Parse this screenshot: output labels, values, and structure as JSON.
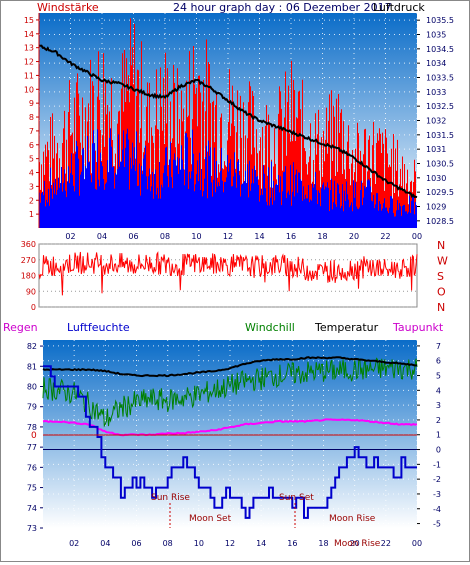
{
  "header": {
    "left_label": "Windstärke",
    "title": "24 hour graph day : 06 Dezember 2017",
    "right_label": "Luftdruck"
  },
  "legend": {
    "regen": "Regen",
    "luftfeuchte": "Luftfeuchte",
    "windchill": "Windchill",
    "temperatur": "Temperatur",
    "taupunkt": "Taupunkt"
  },
  "direction_labels": [
    "N",
    "W",
    "S",
    "O",
    "N"
  ],
  "colors": {
    "panel_top": "#0a6cc8",
    "panel_bottom": "#ffffff",
    "wind_red": "#ff0000",
    "wind_blue": "#0000ff",
    "pressure": "#000000",
    "windchill": "#008000",
    "temperature": "#000000",
    "dewpoint": "#ff00ff",
    "humidity": "#0000cc",
    "axis_red": "#cc0000",
    "axis_blue": "#000066",
    "label_dark_red": "#990000"
  },
  "chart_data": [
    {
      "type": "line",
      "title": "24 hour graph day : 06 Dezember 2017",
      "x_ticks": [
        "02",
        "04",
        "06",
        "08",
        "10",
        "12",
        "14",
        "16",
        "18",
        "20",
        "22",
        "00"
      ],
      "y_left_label": "Windstärke",
      "y_left_ticks": [
        1,
        2,
        3,
        4,
        5,
        6,
        7,
        8,
        9,
        10,
        11,
        12,
        13,
        14,
        15
      ],
      "y_left_range": [
        0,
        15.5
      ],
      "y_right_label": "Luftdruck",
      "y_right_ticks": [
        1028.5,
        1029,
        1029.5,
        1030,
        1030.5,
        1031,
        1031.5,
        1032,
        1032.5,
        1033,
        1033.5,
        1034,
        1034.5,
        1035,
        1035.5
      ],
      "y_right_range": [
        1028.25,
        1035.75
      ],
      "series": [
        {
          "name": "Luftdruck",
          "points": [
            [
              0,
              1034.6
            ],
            [
              1,
              1034.4
            ],
            [
              2,
              1034.0
            ],
            [
              3,
              1033.7
            ],
            [
              4,
              1033.4
            ],
            [
              5,
              1033.3
            ],
            [
              6,
              1033.1
            ],
            [
              7,
              1032.9
            ],
            [
              8,
              1032.8
            ],
            [
              9,
              1033.2
            ],
            [
              10,
              1033.4
            ],
            [
              11,
              1033.1
            ],
            [
              12,
              1032.7
            ],
            [
              13,
              1032.3
            ],
            [
              14,
              1032.0
            ],
            [
              15,
              1031.8
            ],
            [
              16,
              1031.6
            ],
            [
              17,
              1031.4
            ],
            [
              18,
              1031.2
            ],
            [
              19,
              1031.0
            ],
            [
              20,
              1030.7
            ],
            [
              21,
              1030.3
            ],
            [
              22,
              1029.9
            ],
            [
              23,
              1029.6
            ],
            [
              24,
              1029.3
            ]
          ]
        },
        {
          "name": "Windstärke",
          "points": [
            [
              0,
              3
            ],
            [
              1,
              4
            ],
            [
              2,
              5
            ],
            [
              3,
              6
            ],
            [
              4,
              7
            ],
            [
              5,
              6
            ],
            [
              6,
              6
            ],
            [
              7,
              5
            ],
            [
              8,
              5
            ],
            [
              9,
              6
            ],
            [
              10,
              6
            ],
            [
              11,
              5
            ],
            [
              12,
              5
            ],
            [
              13,
              5
            ],
            [
              14,
              4
            ],
            [
              15,
              4
            ],
            [
              16,
              4
            ],
            [
              17,
              4
            ],
            [
              18,
              3
            ],
            [
              19,
              3
            ],
            [
              20,
              3
            ],
            [
              21,
              3
            ],
            [
              22,
              2
            ],
            [
              23,
              2
            ],
            [
              24,
              2
            ]
          ]
        },
        {
          "name": "Böen",
          "points": [
            [
              0,
              6
            ],
            [
              1,
              7
            ],
            [
              2,
              9
            ],
            [
              3,
              10
            ],
            [
              4,
              12
            ],
            [
              5,
              10
            ],
            [
              6,
              13
            ],
            [
              7,
              9
            ],
            [
              8,
              11
            ],
            [
              9,
              9
            ],
            [
              10,
              13
            ],
            [
              11,
              10
            ],
            [
              12,
              10
            ],
            [
              13,
              9
            ],
            [
              14,
              8
            ],
            [
              15,
              8
            ],
            [
              16,
              10
            ],
            [
              17,
              8
            ],
            [
              18,
              7
            ],
            [
              19,
              9
            ],
            [
              20,
              6
            ],
            [
              21,
              7
            ],
            [
              22,
              6
            ],
            [
              23,
              5
            ],
            [
              24,
              4
            ]
          ]
        }
      ]
    },
    {
      "type": "line",
      "x_ticks": [
        "02",
        "04",
        "06",
        "08",
        "10",
        "12",
        "14",
        "16",
        "18",
        "20",
        "22",
        "00"
      ],
      "y_ticks": [
        0,
        90,
        180,
        270,
        360
      ],
      "y_range": [
        0,
        360
      ],
      "series": [
        {
          "name": "Windrichtung",
          "points": [
            [
              0,
              230
            ],
            [
              1,
              240
            ],
            [
              2,
              250
            ],
            [
              3,
              255
            ],
            [
              4,
              250
            ],
            [
              5,
              245
            ],
            [
              6,
              240
            ],
            [
              7,
              250
            ],
            [
              8,
              245
            ],
            [
              9,
              240
            ],
            [
              10,
              250
            ],
            [
              11,
              245
            ],
            [
              12,
              240
            ],
            [
              13,
              235
            ],
            [
              14,
              230
            ],
            [
              15,
              240
            ],
            [
              16,
              235
            ],
            [
              17,
              210
            ],
            [
              18,
              200
            ],
            [
              19,
              215
            ],
            [
              20,
              220
            ],
            [
              21,
              230
            ],
            [
              22,
              210
            ],
            [
              23,
              225
            ],
            [
              24,
              240
            ]
          ]
        }
      ]
    },
    {
      "type": "line",
      "x_ticks": [
        "02",
        "04",
        "06",
        "08",
        "10",
        "12",
        "14",
        "16",
        "18",
        "20",
        "22",
        "00"
      ],
      "y_left_ticks": [
        73,
        74,
        75,
        76,
        77,
        78,
        79,
        80,
        81,
        82
      ],
      "y_left_range": [
        73,
        82.3
      ],
      "y_right_ticks": [
        -5,
        -4,
        -3,
        -2,
        -1,
        0,
        1,
        2,
        3,
        4,
        5,
        6,
        7
      ],
      "y_right_range": [
        -5.3,
        7.4
      ],
      "regen_value": "0",
      "annotations": [
        "Sun Rise",
        "Moon Set",
        "Sun Set",
        "Moon Rise",
        "Moon Rise"
      ],
      "series": [
        {
          "name": "Temperatur",
          "points": [
            [
              0,
              5.4
            ],
            [
              1,
              5.4
            ],
            [
              2,
              5.4
            ],
            [
              3,
              5.4
            ],
            [
              4,
              5.3
            ],
            [
              5,
              5.1
            ],
            [
              6,
              5.0
            ],
            [
              7,
              5.0
            ],
            [
              8,
              5.0
            ],
            [
              9,
              5.1
            ],
            [
              10,
              5.2
            ],
            [
              11,
              5.3
            ],
            [
              12,
              5.5
            ],
            [
              13,
              5.8
            ],
            [
              14,
              6.0
            ],
            [
              15,
              6.1
            ],
            [
              16,
              6.1
            ],
            [
              17,
              6.2
            ],
            [
              18,
              6.2
            ],
            [
              19,
              6.2
            ],
            [
              20,
              6.1
            ],
            [
              21,
              6.0
            ],
            [
              22,
              5.9
            ],
            [
              23,
              5.8
            ],
            [
              24,
              5.7
            ]
          ]
        },
        {
          "name": "Windchill",
          "points": [
            [
              0,
              4.2
            ],
            [
              1,
              4.0
            ],
            [
              2,
              3.8
            ],
            [
              3,
              3.0
            ],
            [
              4,
              2.0
            ],
            [
              5,
              2.8
            ],
            [
              6,
              3.2
            ],
            [
              7,
              3.4
            ],
            [
              8,
              3.3
            ],
            [
              9,
              3.5
            ],
            [
              10,
              3.7
            ],
            [
              11,
              4.0
            ],
            [
              12,
              4.3
            ],
            [
              13,
              4.6
            ],
            [
              14,
              4.8
            ],
            [
              15,
              5.0
            ],
            [
              16,
              5.1
            ],
            [
              17,
              5.2
            ],
            [
              18,
              5.3
            ],
            [
              19,
              5.3
            ],
            [
              20,
              5.4
            ],
            [
              21,
              5.4
            ],
            [
              22,
              5.5
            ],
            [
              23,
              5.5
            ],
            [
              24,
              5.5
            ]
          ]
        },
        {
          "name": "Taupunkt",
          "points": [
            [
              0,
              1.9
            ],
            [
              1,
              1.9
            ],
            [
              2,
              1.8
            ],
            [
              3,
              1.7
            ],
            [
              4,
              1.2
            ],
            [
              5,
              1.0
            ],
            [
              6,
              1.0
            ],
            [
              7,
              1.0
            ],
            [
              8,
              1.1
            ],
            [
              9,
              1.1
            ],
            [
              10,
              1.2
            ],
            [
              11,
              1.3
            ],
            [
              12,
              1.5
            ],
            [
              13,
              1.7
            ],
            [
              14,
              1.8
            ],
            [
              15,
              1.9
            ],
            [
              16,
              1.9
            ],
            [
              17,
              1.9
            ],
            [
              18,
              2.0
            ],
            [
              19,
              2.0
            ],
            [
              20,
              2.0
            ],
            [
              21,
              1.9
            ],
            [
              22,
              1.8
            ],
            [
              23,
              1.7
            ],
            [
              24,
              1.7
            ]
          ]
        },
        {
          "name": "Luftfeuchte",
          "points": [
            [
              0,
              80.9
            ],
            [
              1,
              80.0
            ],
            [
              2,
              79.8
            ],
            [
              3,
              78.5
            ],
            [
              4,
              75.8
            ],
            [
              5,
              75.0
            ],
            [
              6,
              75.0
            ],
            [
              7,
              75.0
            ],
            [
              8,
              75.5
            ],
            [
              9,
              76.3
            ],
            [
              10,
              75.2
            ],
            [
              11,
              74.5
            ],
            [
              12,
              74.5
            ],
            [
              13,
              74.0
            ],
            [
              14,
              74.7
            ],
            [
              15,
              74.5
            ],
            [
              16,
              74.0
            ],
            [
              17,
              74.0
            ],
            [
              18,
              74.2
            ],
            [
              19,
              75.8
            ],
            [
              20,
              76.8
            ],
            [
              21,
              76.3
            ],
            [
              22,
              76.0
            ],
            [
              23,
              76.0
            ],
            [
              24,
              76.0
            ]
          ]
        }
      ]
    }
  ]
}
